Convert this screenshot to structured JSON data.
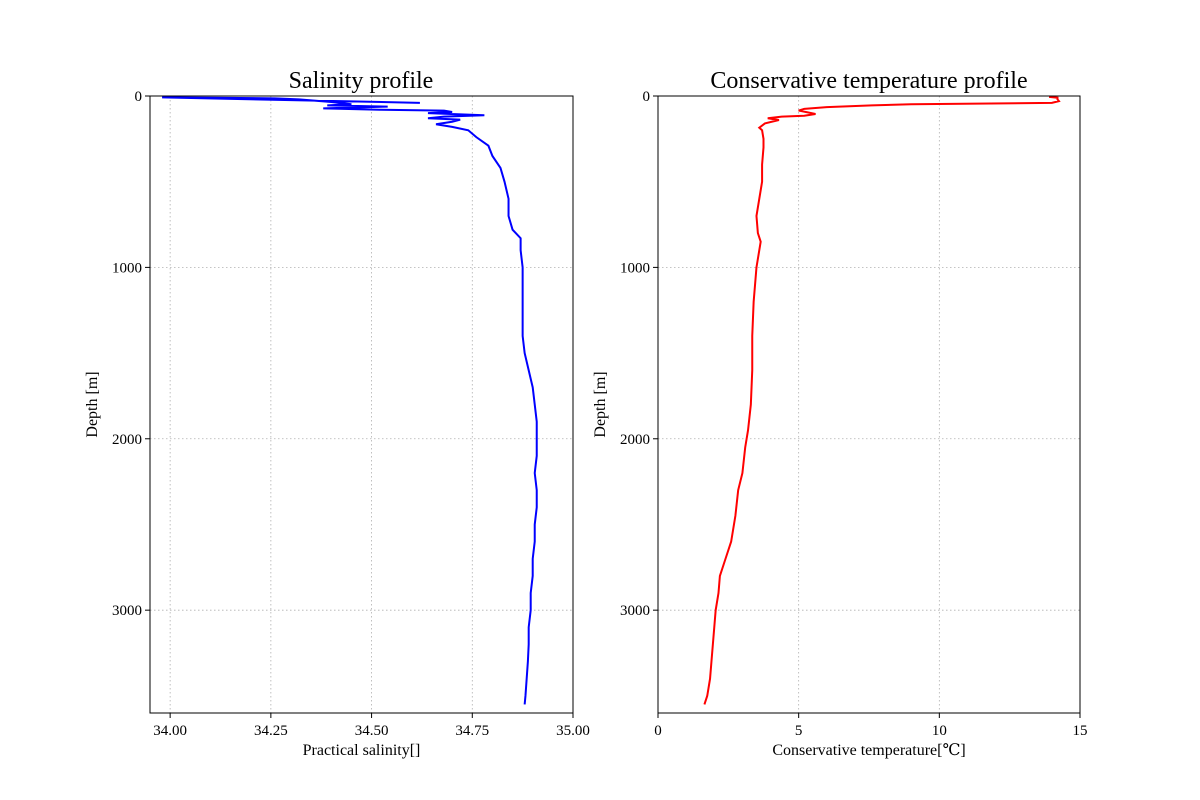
{
  "chart_data": [
    {
      "type": "line",
      "title": "Salinity profile",
      "xlabel": "Practical salinity[]",
      "ylabel": "Depth [m]",
      "xlim": [
        33.95,
        35.0
      ],
      "ylim": [
        3600,
        0
      ],
      "y_inverted": true,
      "grid": true,
      "xticks": [
        34.0,
        34.25,
        34.5,
        34.75,
        35.0
      ],
      "xtick_labels": [
        "34.00",
        "34.25",
        "34.50",
        "34.75",
        "35.00"
      ],
      "yticks": [
        0,
        1000,
        2000,
        3000
      ],
      "ytick_labels": [
        "0",
        "1000",
        "2000",
        "3000"
      ],
      "series": [
        {
          "color": "#0000ff",
          "points": [
            [
              34.62,
              40
            ],
            [
              33.98,
              8
            ],
            [
              34.1,
              10
            ],
            [
              34.26,
              14
            ],
            [
              34.32,
              20
            ],
            [
              34.4,
              35
            ],
            [
              34.45,
              48
            ],
            [
              34.39,
              55
            ],
            [
              34.54,
              62
            ],
            [
              34.38,
              72
            ],
            [
              34.52,
              80
            ],
            [
              34.68,
              85
            ],
            [
              34.7,
              93
            ],
            [
              34.64,
              100
            ],
            [
              34.78,
              112
            ],
            [
              34.68,
              120
            ],
            [
              34.64,
              130
            ],
            [
              34.72,
              138
            ],
            [
              34.7,
              150
            ],
            [
              34.66,
              165
            ],
            [
              34.7,
              180
            ],
            [
              34.74,
              200
            ],
            [
              34.76,
              240
            ],
            [
              34.79,
              290
            ],
            [
              34.8,
              350
            ],
            [
              34.82,
              420
            ],
            [
              34.83,
              500
            ],
            [
              34.84,
              600
            ],
            [
              34.84,
              700
            ],
            [
              34.85,
              780
            ],
            [
              34.87,
              830
            ],
            [
              34.87,
              900
            ],
            [
              34.875,
              1000
            ],
            [
              34.875,
              1200
            ],
            [
              34.875,
              1400
            ],
            [
              34.88,
              1500
            ],
            [
              34.89,
              1600
            ],
            [
              34.9,
              1700
            ],
            [
              34.905,
              1800
            ],
            [
              34.91,
              1900
            ],
            [
              34.91,
              2000
            ],
            [
              34.91,
              2100
            ],
            [
              34.905,
              2200
            ],
            [
              34.91,
              2300
            ],
            [
              34.91,
              2400
            ],
            [
              34.905,
              2500
            ],
            [
              34.905,
              2600
            ],
            [
              34.9,
              2700
            ],
            [
              34.9,
              2800
            ],
            [
              34.895,
              2900
            ],
            [
              34.895,
              3000
            ],
            [
              34.89,
              3100
            ],
            [
              34.89,
              3200
            ],
            [
              34.888,
              3300
            ],
            [
              34.885,
              3400
            ],
            [
              34.882,
              3500
            ],
            [
              34.88,
              3550
            ]
          ]
        }
      ]
    },
    {
      "type": "line",
      "title": "Conservative temperature profile",
      "xlabel": "Conservative temperature[℃]",
      "ylabel": "Depth [m]",
      "xlim": [
        0,
        15
      ],
      "ylim": [
        3600,
        0
      ],
      "y_inverted": true,
      "grid": true,
      "xticks": [
        0,
        5,
        10,
        15
      ],
      "xtick_labels": [
        "0",
        "5",
        "10",
        "15"
      ],
      "yticks": [
        0,
        1000,
        2000,
        3000
      ],
      "ytick_labels": [
        "0",
        "1000",
        "2000",
        "3000"
      ],
      "series": [
        {
          "color": "#ff0000",
          "points": [
            [
              13.9,
              5
            ],
            [
              14.2,
              10
            ],
            [
              14.2,
              20
            ],
            [
              14.25,
              30
            ],
            [
              14.0,
              40
            ],
            [
              9.0,
              48
            ],
            [
              7.6,
              55
            ],
            [
              6.0,
              65
            ],
            [
              5.2,
              75
            ],
            [
              5.0,
              85
            ],
            [
              5.3,
              95
            ],
            [
              5.6,
              105
            ],
            [
              5.2,
              115
            ],
            [
              4.4,
              120
            ],
            [
              3.9,
              130
            ],
            [
              4.3,
              140
            ],
            [
              3.8,
              160
            ],
            [
              3.6,
              185
            ],
            [
              3.7,
              200
            ],
            [
              3.75,
              250
            ],
            [
              3.75,
              300
            ],
            [
              3.7,
              400
            ],
            [
              3.7,
              500
            ],
            [
              3.6,
              600
            ],
            [
              3.5,
              700
            ],
            [
              3.55,
              800
            ],
            [
              3.65,
              850
            ],
            [
              3.5,
              1000
            ],
            [
              3.4,
              1200
            ],
            [
              3.35,
              1400
            ],
            [
              3.35,
              1600
            ],
            [
              3.3,
              1800
            ],
            [
              3.2,
              1950
            ],
            [
              3.1,
              2050
            ],
            [
              3.0,
              2200
            ],
            [
              2.85,
              2300
            ],
            [
              2.75,
              2450
            ],
            [
              2.6,
              2600
            ],
            [
              2.4,
              2700
            ],
            [
              2.2,
              2800
            ],
            [
              2.15,
              2900
            ],
            [
              2.05,
              3000
            ],
            [
              2.0,
              3100
            ],
            [
              1.95,
              3200
            ],
            [
              1.9,
              3300
            ],
            [
              1.85,
              3400
            ],
            [
              1.75,
              3500
            ],
            [
              1.65,
              3550
            ]
          ]
        }
      ]
    }
  ]
}
